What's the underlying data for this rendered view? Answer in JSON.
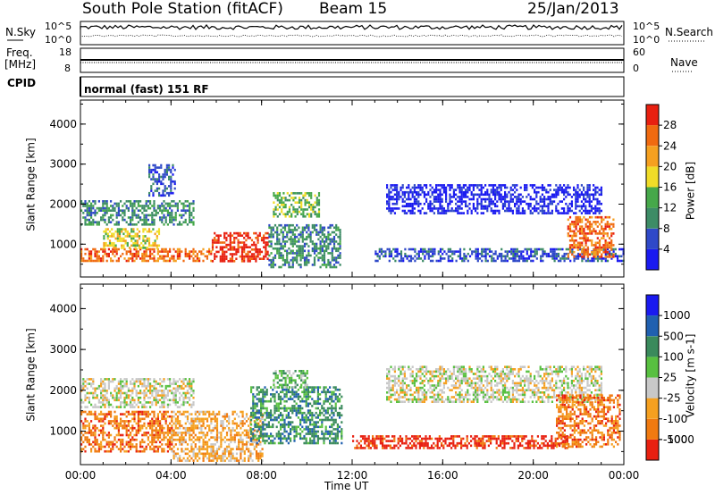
{
  "header": {
    "station": "South Pole Station (fitACF)",
    "beam": "Beam 15",
    "date": "25/Jan/2013"
  },
  "sidebar": {
    "nsky": "N.Sky",
    "freq_line1": "Freq.",
    "freq_line2": "[MHz]",
    "cpid": "CPID",
    "nsearch": "N.Search",
    "nave": "Nave"
  },
  "strip_axes": {
    "nsky_ticks": [
      "10^5",
      "10^0"
    ],
    "freq_ticks": [
      "18",
      "8"
    ],
    "nsearch_ticks": [
      "10^5",
      "10^0"
    ],
    "nave_ticks": [
      "60",
      "0"
    ]
  },
  "cpid_text": "normal (fast) 151 RF",
  "colors": {
    "power": [
      "#1a1af0",
      "#2f49c8",
      "#3d8c66",
      "#46a84a",
      "#f0dc28",
      "#f5a020",
      "#f06a10",
      "#e82010"
    ],
    "velocity": [
      "#1a1af0",
      "#2060b0",
      "#3a8a5c",
      "#58c040",
      "#c8c8c8",
      "#f5a020",
      "#f07a10",
      "#e82010"
    ]
  },
  "chart_data": [
    {
      "type": "heatmap",
      "name": "power",
      "xlabel": "",
      "ylabel": "Slant Range [km]",
      "x_ticks": [
        "00:00",
        "04:00",
        "08:00",
        "12:00",
        "16:00",
        "20:00",
        "00:00"
      ],
      "y_ticks": [
        "1000",
        "2000",
        "3000",
        "4000"
      ],
      "xlim": [
        0,
        24
      ],
      "ylim": [
        180,
        4600
      ],
      "colorbar": {
        "label": "Power [dB]",
        "ticks": [
          "4",
          "8",
          "12",
          "16",
          "20",
          "24",
          "28"
        ],
        "range": [
          0,
          32
        ]
      },
      "regions": [
        {
          "t": [
            0.0,
            5.8
          ],
          "r": [
            600,
            900
          ],
          "level": 6
        },
        {
          "t": [
            1.0,
            3.5
          ],
          "r": [
            900,
            1400
          ],
          "level": 4
        },
        {
          "t": [
            0.0,
            5.0
          ],
          "r": [
            1500,
            2100
          ],
          "level": 2
        },
        {
          "t": [
            3.0,
            4.2
          ],
          "r": [
            2200,
            3000
          ],
          "level": 1
        },
        {
          "t": [
            5.8,
            8.3
          ],
          "r": [
            550,
            1300
          ],
          "level": 7
        },
        {
          "t": [
            8.3,
            11.5
          ],
          "r": [
            400,
            1500
          ],
          "level": 2
        },
        {
          "t": [
            8.5,
            10.5
          ],
          "r": [
            1700,
            2300
          ],
          "level": 3
        },
        {
          "t": [
            13.0,
            24.0
          ],
          "r": [
            600,
            900
          ],
          "level": 1
        },
        {
          "t": [
            13.5,
            23.0
          ],
          "r": [
            1800,
            2500
          ],
          "level": 0
        },
        {
          "t": [
            21.5,
            23.5
          ],
          "r": [
            700,
            1700
          ],
          "level": 6
        }
      ]
    },
    {
      "type": "heatmap",
      "name": "velocity",
      "xlabel": "Time UT",
      "ylabel": "Slant Range [km]",
      "x_ticks": [
        "00:00",
        "04:00",
        "08:00",
        "12:00",
        "16:00",
        "20:00",
        "00:00"
      ],
      "y_ticks": [
        "1000",
        "2000",
        "3000",
        "4000"
      ],
      "xlim": [
        0,
        24
      ],
      "ylim": [
        180,
        4600
      ],
      "colorbar": {
        "label": "Velocity [m s-1]",
        "ticks": [
          "1000",
          "500",
          "100",
          "25",
          "-25",
          "-100",
          "-500",
          "-1000"
        ],
        "range": [
          -1500,
          1500
        ]
      },
      "regions": [
        {
          "t": [
            0.0,
            4.0
          ],
          "r": [
            500,
            1500
          ],
          "level": 6
        },
        {
          "t": [
            0.0,
            5.0
          ],
          "r": [
            1600,
            2300
          ],
          "level": 4
        },
        {
          "t": [
            4.0,
            8.0
          ],
          "r": [
            300,
            1500
          ],
          "level": 5
        },
        {
          "t": [
            7.5,
            11.5
          ],
          "r": [
            700,
            2100
          ],
          "level": 2
        },
        {
          "t": [
            8.5,
            10.0
          ],
          "r": [
            2100,
            2500
          ],
          "level": 3
        },
        {
          "t": [
            12.0,
            21.5
          ],
          "r": [
            600,
            900
          ],
          "level": 7
        },
        {
          "t": [
            13.5,
            23.0
          ],
          "r": [
            1700,
            2600
          ],
          "level": 4
        },
        {
          "t": [
            21.0,
            23.8
          ],
          "r": [
            600,
            1900
          ],
          "level": 6
        }
      ]
    }
  ]
}
